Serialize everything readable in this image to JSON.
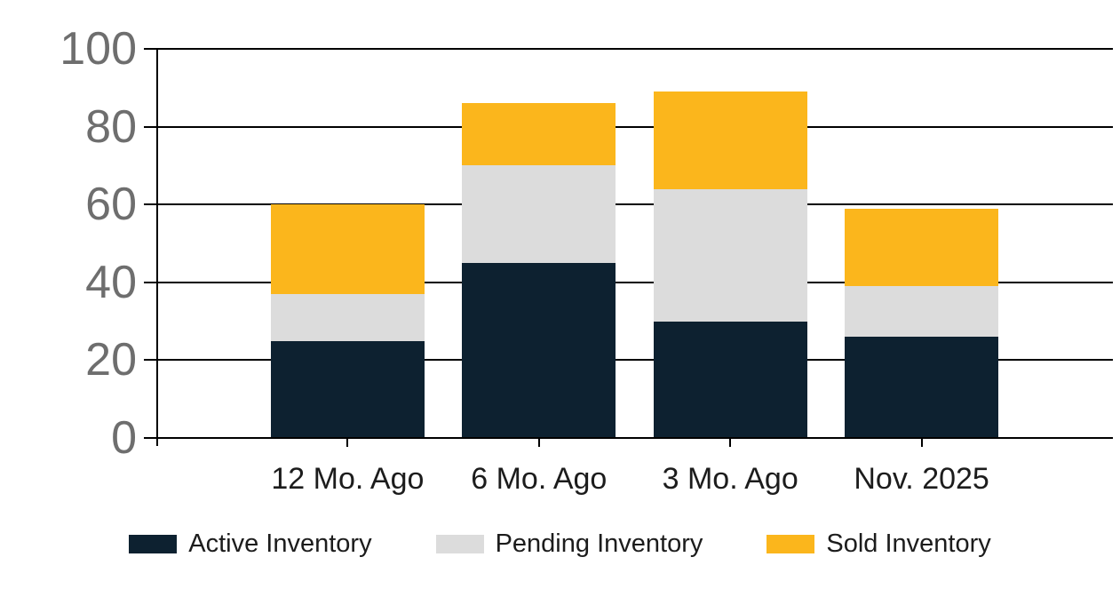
{
  "chart_data": {
    "type": "bar",
    "stacked": true,
    "title": "",
    "categories": [
      "12 Mo. Ago",
      "6 Mo. Ago",
      "3 Mo. Ago",
      "Nov. 2025"
    ],
    "series": [
      {
        "name": "Active Inventory",
        "color": "#0d2130",
        "values": [
          25,
          45,
          30,
          26
        ]
      },
      {
        "name": "Pending Inventory",
        "color": "#dcdcdc",
        "values": [
          12,
          25,
          34,
          13
        ]
      },
      {
        "name": "Sold Inventory",
        "color": "#fbb61c",
        "values": [
          23,
          16,
          25,
          20
        ]
      }
    ],
    "totals": [
      60,
      86,
      89,
      59
    ],
    "y_ticks": [
      0,
      20,
      40,
      60,
      80,
      100
    ],
    "ylim": [
      0,
      100
    ],
    "grid": true,
    "legend_position": "bottom",
    "colors": {
      "axis_line": "#000000",
      "y_label": "#6e6e6e",
      "text": "#1c1c1c",
      "background": "#ffffff"
    }
  }
}
